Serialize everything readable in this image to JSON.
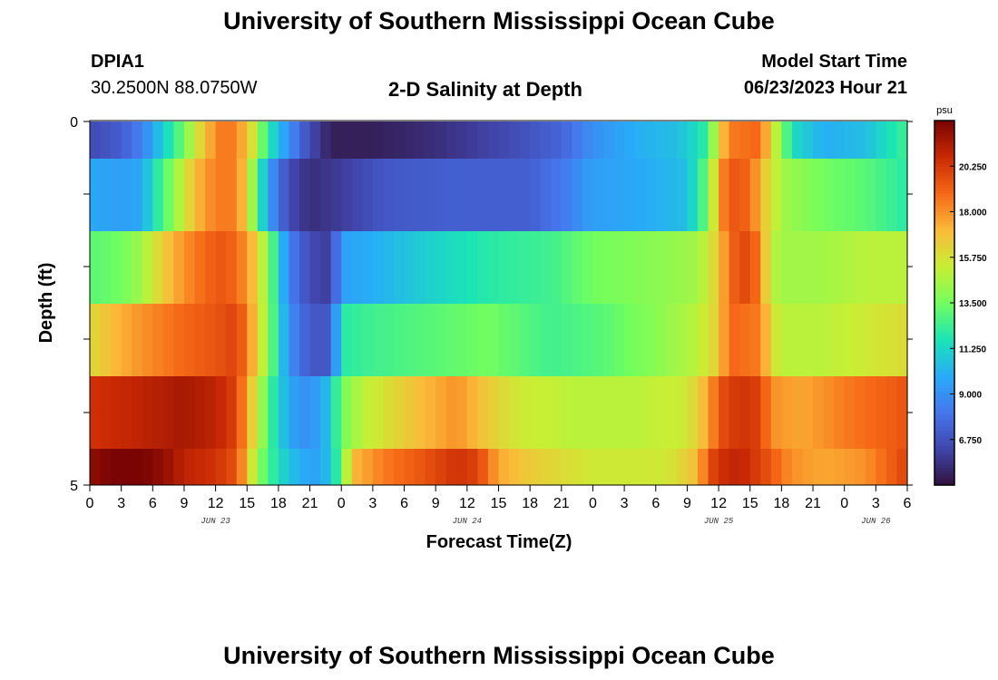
{
  "page": {
    "title_top": "University of Southern Mississippi Ocean Cube",
    "title_bottom": "University of Southern Mississippi Ocean Cube",
    "station_id": "DPIA1",
    "coordinates": "30.2500N  88.0750W",
    "plot_title": "2-D Salinity at Depth",
    "model_start_label": "Model Start Time",
    "model_start_value": "06/23/2023 Hour 21"
  },
  "chart_data": {
    "type": "heatmap",
    "title": "2-D Salinity at Depth",
    "xlabel": "Forecast Time(Z)",
    "ylabel": "Depth (ft)",
    "x_ticks": [
      "0",
      "3",
      "6",
      "9",
      "12",
      "15",
      "18",
      "21",
      "0",
      "3",
      "6",
      "9",
      "12",
      "15",
      "18",
      "21",
      "0",
      "3",
      "6",
      "9",
      "12",
      "15",
      "18",
      "21",
      "0",
      "3",
      "6"
    ],
    "date_labels": [
      {
        "label": "JUN 23",
        "hour": 12
      },
      {
        "label": "JUN 24",
        "hour": 36
      },
      {
        "label": "JUN 25",
        "hour": 60
      },
      {
        "label": "JUN 26",
        "hour": 75
      }
    ],
    "x_range_hours": [
      0,
      78
    ],
    "y_tick_labels": [
      "0",
      "5"
    ],
    "y_range_ft": [
      0,
      5
    ],
    "depth_layers": 5,
    "colorbar": {
      "unit": "psu",
      "range": [
        4.5,
        22.5
      ],
      "tick_values": [
        6.75,
        9.0,
        11.25,
        13.5,
        15.75,
        18.0,
        20.25
      ],
      "tick_labels": [
        "6.750",
        "9.000",
        "11.250",
        "13.500",
        "15.750",
        "18.000",
        "20.250"
      ]
    },
    "rows": [
      {
        "depth": "0-1 ft",
        "points": [
          [
            0,
            6.5
          ],
          [
            3,
            7.2
          ],
          [
            5,
            8.5
          ],
          [
            7,
            11.0
          ],
          [
            9,
            13.5
          ],
          [
            11,
            17.0
          ],
          [
            13,
            19.0
          ],
          [
            15,
            17.0
          ],
          [
            17,
            12.0
          ],
          [
            19,
            9.0
          ],
          [
            21,
            6.5
          ],
          [
            23,
            5.0
          ],
          [
            27,
            5.0
          ],
          [
            33,
            5.5
          ],
          [
            40,
            6.5
          ],
          [
            45,
            7.5
          ],
          [
            48,
            9.0
          ],
          [
            52,
            10.0
          ],
          [
            56,
            10.5
          ],
          [
            58,
            11.5
          ],
          [
            59,
            12.5
          ],
          [
            60,
            16.0
          ],
          [
            61,
            18.5
          ],
          [
            64,
            19.0
          ],
          [
            65,
            16.0
          ],
          [
            66,
            14.0
          ],
          [
            67,
            11.5
          ],
          [
            70,
            10.0
          ],
          [
            74,
            10.5
          ],
          [
            76,
            11.5
          ],
          [
            78,
            12.5
          ]
        ]
      },
      {
        "depth": "1-2 ft",
        "points": [
          [
            0,
            9.8
          ],
          [
            3,
            9.5
          ],
          [
            5,
            9.8
          ],
          [
            6,
            11.5
          ],
          [
            8,
            14.0
          ],
          [
            10,
            17.0
          ],
          [
            12,
            18.5
          ],
          [
            14,
            18.5
          ],
          [
            15,
            16.0
          ],
          [
            17,
            9.5
          ],
          [
            19,
            6.5
          ],
          [
            21,
            5.5
          ],
          [
            24,
            6.0
          ],
          [
            28,
            7.0
          ],
          [
            35,
            7.3
          ],
          [
            42,
            7.3
          ],
          [
            45,
            8.2
          ],
          [
            48,
            9.5
          ],
          [
            52,
            9.8
          ],
          [
            57,
            10.5
          ],
          [
            59,
            13.5
          ],
          [
            60,
            17.5
          ],
          [
            61,
            19.5
          ],
          [
            63,
            19.0
          ],
          [
            64,
            17.0
          ],
          [
            66,
            14.5
          ],
          [
            70,
            13.5
          ],
          [
            74,
            13.0
          ],
          [
            76,
            12.5
          ],
          [
            78,
            12.0
          ]
        ]
      },
      {
        "depth": "2-3 ft",
        "points": [
          [
            0,
            13.0
          ],
          [
            3,
            13.5
          ],
          [
            5,
            14.5
          ],
          [
            7,
            16.5
          ],
          [
            9,
            18.0
          ],
          [
            11,
            19.0
          ],
          [
            13,
            19.5
          ],
          [
            15,
            18.0
          ],
          [
            17,
            14.0
          ],
          [
            19,
            8.5
          ],
          [
            21,
            6.5
          ],
          [
            23,
            6.0
          ],
          [
            24,
            9.5
          ],
          [
            27,
            10.0
          ],
          [
            32,
            11.0
          ],
          [
            38,
            12.0
          ],
          [
            44,
            12.5
          ],
          [
            48,
            13.5
          ],
          [
            54,
            14.0
          ],
          [
            58,
            14.5
          ],
          [
            60,
            16.5
          ],
          [
            61,
            19.0
          ],
          [
            63,
            20.0
          ],
          [
            64,
            18.0
          ],
          [
            65,
            15.0
          ],
          [
            66,
            14.5
          ],
          [
            70,
            14.5
          ],
          [
            74,
            15.0
          ],
          [
            78,
            15.0
          ]
        ]
      },
      {
        "depth": "3-4 ft",
        "points": [
          [
            0,
            16.0
          ],
          [
            2,
            17.0
          ],
          [
            5,
            18.0
          ],
          [
            9,
            19.0
          ],
          [
            12,
            19.5
          ],
          [
            14,
            20.0
          ],
          [
            15,
            18.5
          ],
          [
            17,
            14.0
          ],
          [
            19,
            9.0
          ],
          [
            21,
            7.0
          ],
          [
            23,
            7.0
          ],
          [
            24,
            12.0
          ],
          [
            27,
            12.5
          ],
          [
            33,
            13.0
          ],
          [
            38,
            13.5
          ],
          [
            44,
            12.5
          ],
          [
            49,
            13.0
          ],
          [
            54,
            14.0
          ],
          [
            58,
            15.0
          ],
          [
            60,
            16.5
          ],
          [
            61,
            19.0
          ],
          [
            64,
            18.5
          ],
          [
            65,
            16.0
          ],
          [
            66,
            15.0
          ],
          [
            70,
            15.0
          ],
          [
            74,
            15.5
          ],
          [
            78,
            16.0
          ]
        ]
      },
      {
        "depth": "4-5 ft",
        "points": [
          [
            0,
            20.5
          ],
          [
            5,
            21.0
          ],
          [
            9,
            21.5
          ],
          [
            12,
            21.0
          ],
          [
            14,
            20.0
          ],
          [
            15,
            17.5
          ],
          [
            17,
            13.0
          ],
          [
            18,
            11.0
          ],
          [
            20,
            9.0
          ],
          [
            22,
            9.5
          ],
          [
            23,
            11.0
          ],
          [
            24,
            13.5
          ],
          [
            26,
            15.0
          ],
          [
            30,
            16.5
          ],
          [
            35,
            18.0
          ],
          [
            38,
            16.5
          ],
          [
            41,
            15.5
          ],
          [
            46,
            15.0
          ],
          [
            52,
            15.0
          ],
          [
            57,
            15.5
          ],
          [
            59,
            17.5
          ],
          [
            60,
            19.5
          ],
          [
            62,
            20.5
          ],
          [
            64,
            20.0
          ],
          [
            65,
            18.0
          ],
          [
            68,
            17.5
          ],
          [
            72,
            18.5
          ],
          [
            78,
            19.5
          ]
        ]
      },
      {
        "depth": "5 ft",
        "points": [
          [
            0,
            22.0
          ],
          [
            2,
            22.5
          ],
          [
            4,
            22.8
          ],
          [
            7,
            22.0
          ],
          [
            9,
            21.0
          ],
          [
            12,
            20.5
          ],
          [
            14,
            19.5
          ],
          [
            15,
            17.0
          ],
          [
            16,
            14.0
          ],
          [
            18,
            11.5
          ],
          [
            20,
            10.0
          ],
          [
            22,
            9.5
          ],
          [
            23,
            11.0
          ],
          [
            24,
            13.0
          ],
          [
            25,
            17.0
          ],
          [
            28,
            18.5
          ],
          [
            32,
            19.5
          ],
          [
            35,
            20.5
          ],
          [
            37,
            20.0
          ],
          [
            39,
            17.5
          ],
          [
            42,
            16.5
          ],
          [
            48,
            15.5
          ],
          [
            55,
            15.5
          ],
          [
            58,
            17.0
          ],
          [
            59,
            19.5
          ],
          [
            60,
            20.5
          ],
          [
            62,
            21.0
          ],
          [
            64,
            20.0
          ],
          [
            67,
            18.0
          ],
          [
            70,
            17.5
          ],
          [
            74,
            18.0
          ],
          [
            78,
            20.0
          ]
        ]
      }
    ]
  }
}
